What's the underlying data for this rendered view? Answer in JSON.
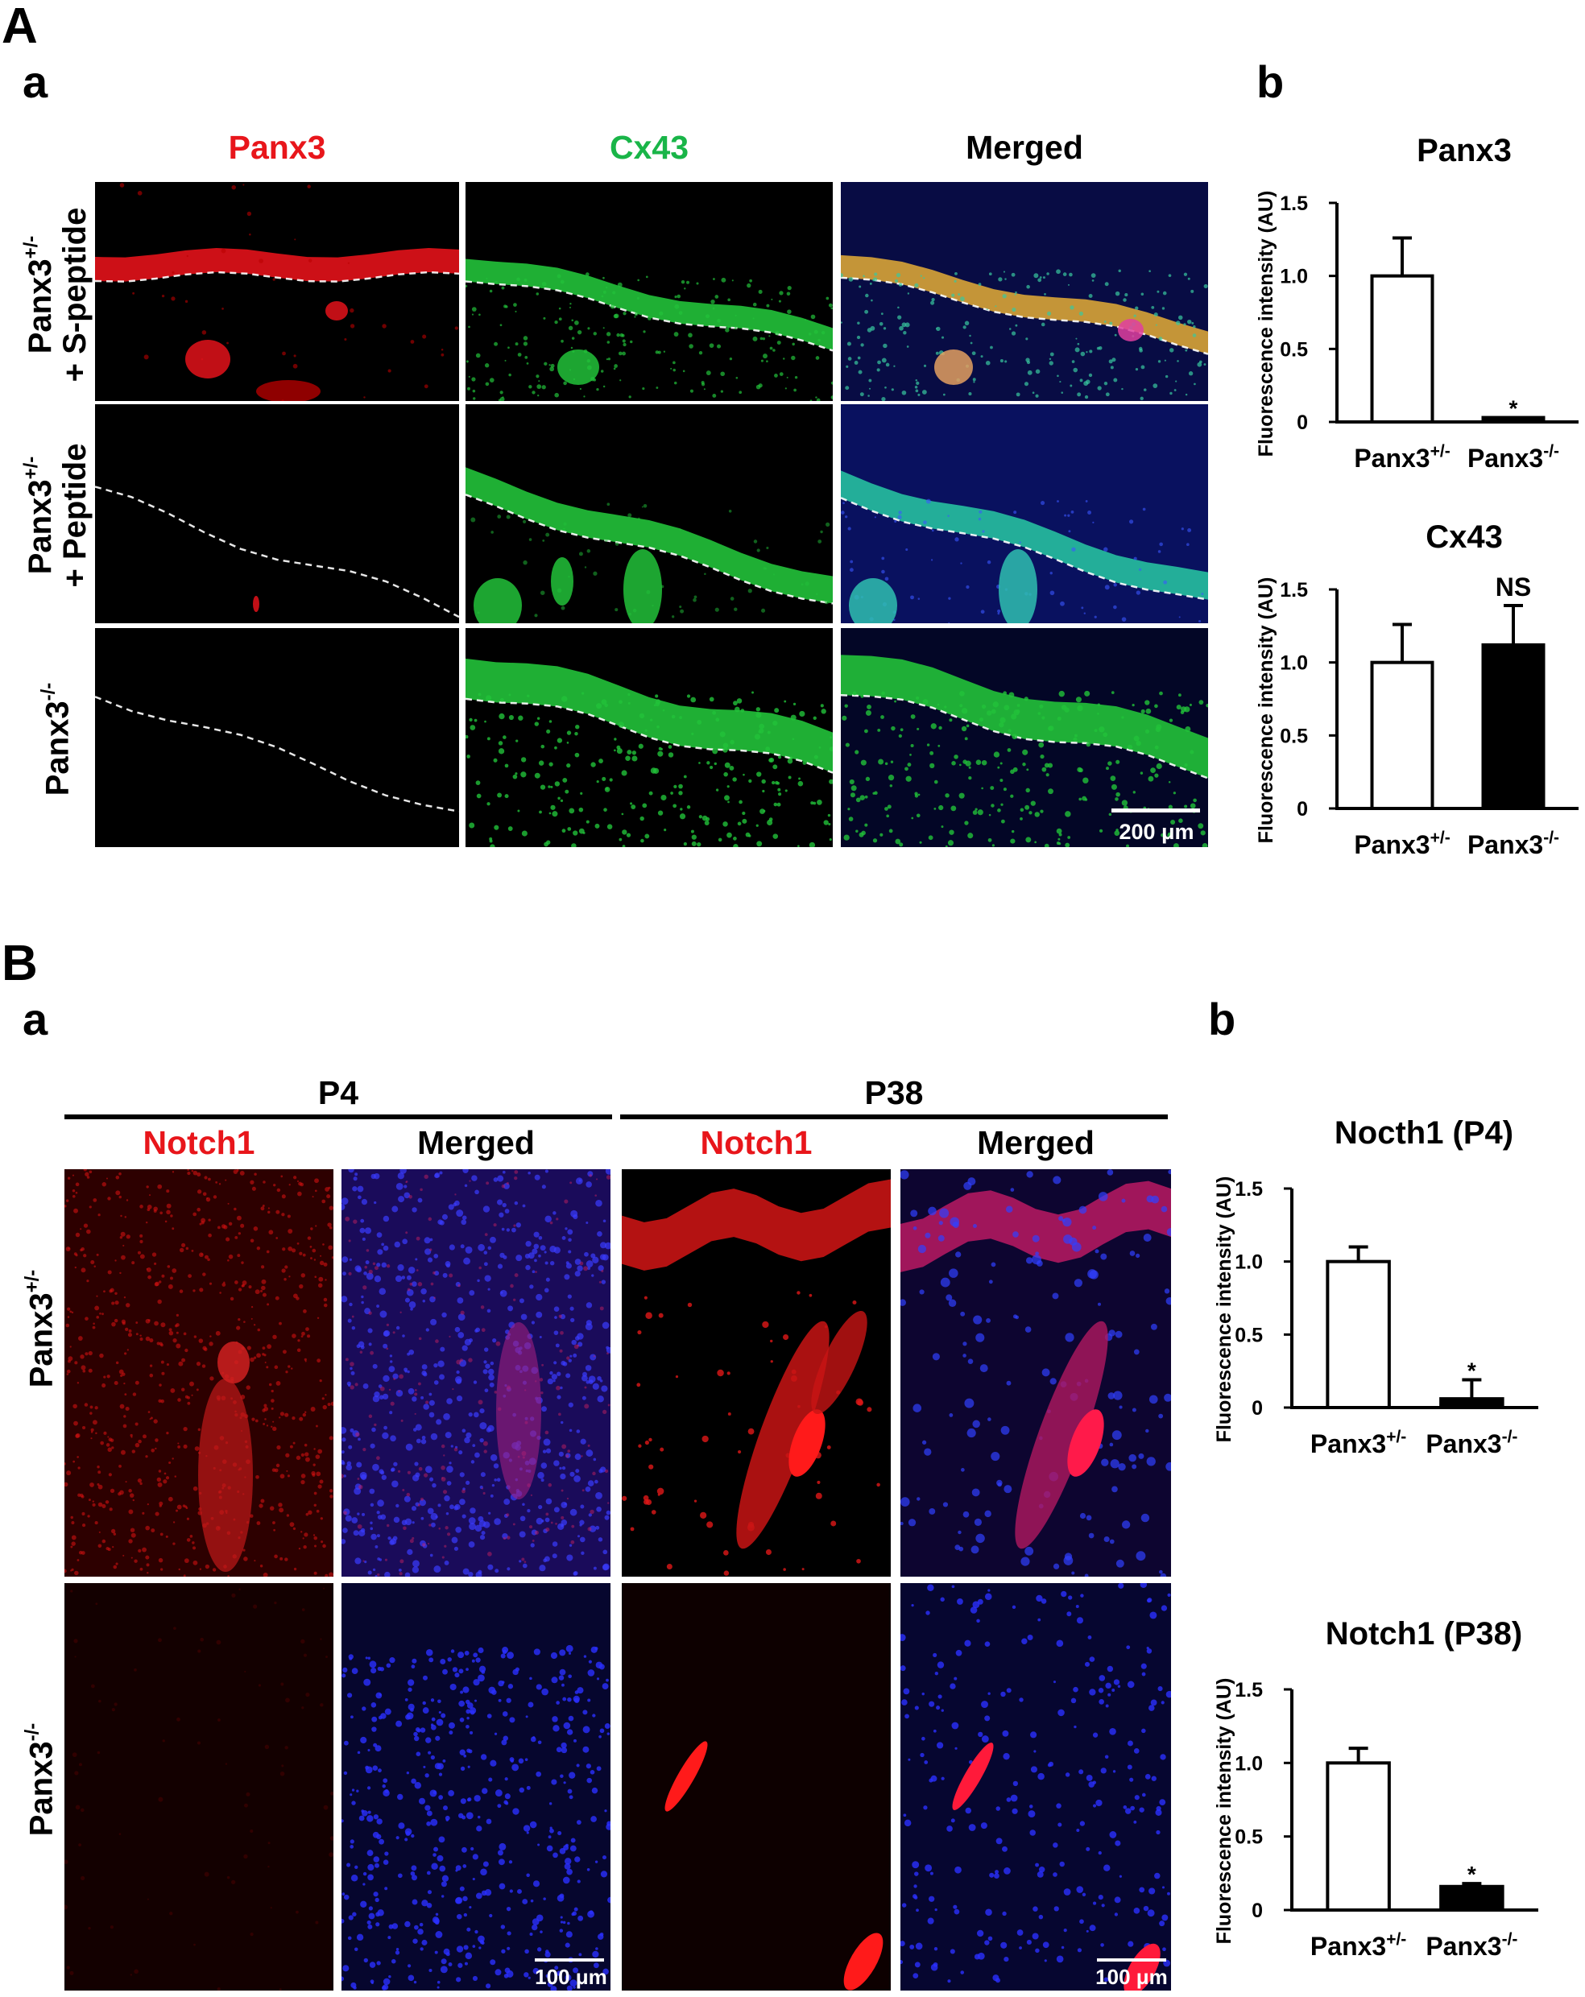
{
  "figure": {
    "A": {
      "letter": "A",
      "a_letter": "a",
      "b_letter": "b",
      "columns": [
        "Panx3",
        "Cx43",
        "Merged"
      ],
      "rows": [
        {
          "line1": "Panx3+/-",
          "line2": "+ S-peptide"
        },
        {
          "line1": "Panx3+/-",
          "line2": "+ Peptide"
        },
        {
          "line1": "Panx3-/-",
          "line2": ""
        }
      ],
      "scale_bar": "200 μm"
    },
    "B": {
      "letter": "B",
      "a_letter": "a",
      "b_letter": "b",
      "groups": [
        "P4",
        "P38"
      ],
      "columns": [
        "Notch1",
        "Merged",
        "Notch1",
        "Merged"
      ],
      "rows": [
        "Panx3+/-",
        "Panx3-/-"
      ],
      "scale_bar": "100 μm"
    }
  },
  "colors": {
    "red_label": "#e8161b",
    "green_label": "#19b548",
    "black": "#000000"
  },
  "chart_data": [
    {
      "type": "bar",
      "title": "Panx3",
      "ylabel": "Fluorescence intensity (AU)",
      "categories": [
        "Panx3+/-",
        "Panx3-/-"
      ],
      "values": [
        1.0,
        0.03
      ],
      "errors": [
        0.26,
        0.0
      ],
      "fills": [
        "#ffffff",
        "#000000"
      ],
      "annotations": [
        "",
        "*"
      ],
      "ylim": [
        0,
        1.5
      ],
      "yticks": [
        "0",
        "0.5",
        "1.0",
        "1.5"
      ]
    },
    {
      "type": "bar",
      "title": "Cx43",
      "ylabel": "Fluorescence intensity (AU)",
      "categories": [
        "Panx3+/-",
        "Panx3-/-"
      ],
      "values": [
        1.0,
        1.12
      ],
      "errors": [
        0.26,
        0.27
      ],
      "fills": [
        "#ffffff",
        "#000000"
      ],
      "annotations": [
        "",
        "NS"
      ],
      "ylim": [
        0,
        1.5
      ],
      "yticks": [
        "0",
        "0.5",
        "1.0",
        "1.5"
      ]
    },
    {
      "type": "bar",
      "title": "Nocth1 (P4)",
      "ylabel": "Fluorescence intensity (AU)",
      "categories": [
        "Panx3+/-",
        "Panx3-/-"
      ],
      "values": [
        1.0,
        0.06
      ],
      "errors": [
        0.1,
        0.13
      ],
      "fills": [
        "#ffffff",
        "#000000"
      ],
      "annotations": [
        "",
        "*"
      ],
      "ylim": [
        0,
        1.5
      ],
      "yticks": [
        "0",
        "0.5",
        "1.0",
        "1.5"
      ]
    },
    {
      "type": "bar",
      "title": "Notch1 (P38)",
      "ylabel": "Fluorescence intensity (AU)",
      "categories": [
        "Panx3+/-",
        "Panx3-/-"
      ],
      "values": [
        1.0,
        0.16
      ],
      "errors": [
        0.1,
        0.02
      ],
      "fills": [
        "#ffffff",
        "#000000"
      ],
      "annotations": [
        "",
        "*"
      ],
      "ylim": [
        0,
        1.5
      ],
      "yticks": [
        "0",
        "0.5",
        "1.0",
        "1.5"
      ]
    }
  ]
}
